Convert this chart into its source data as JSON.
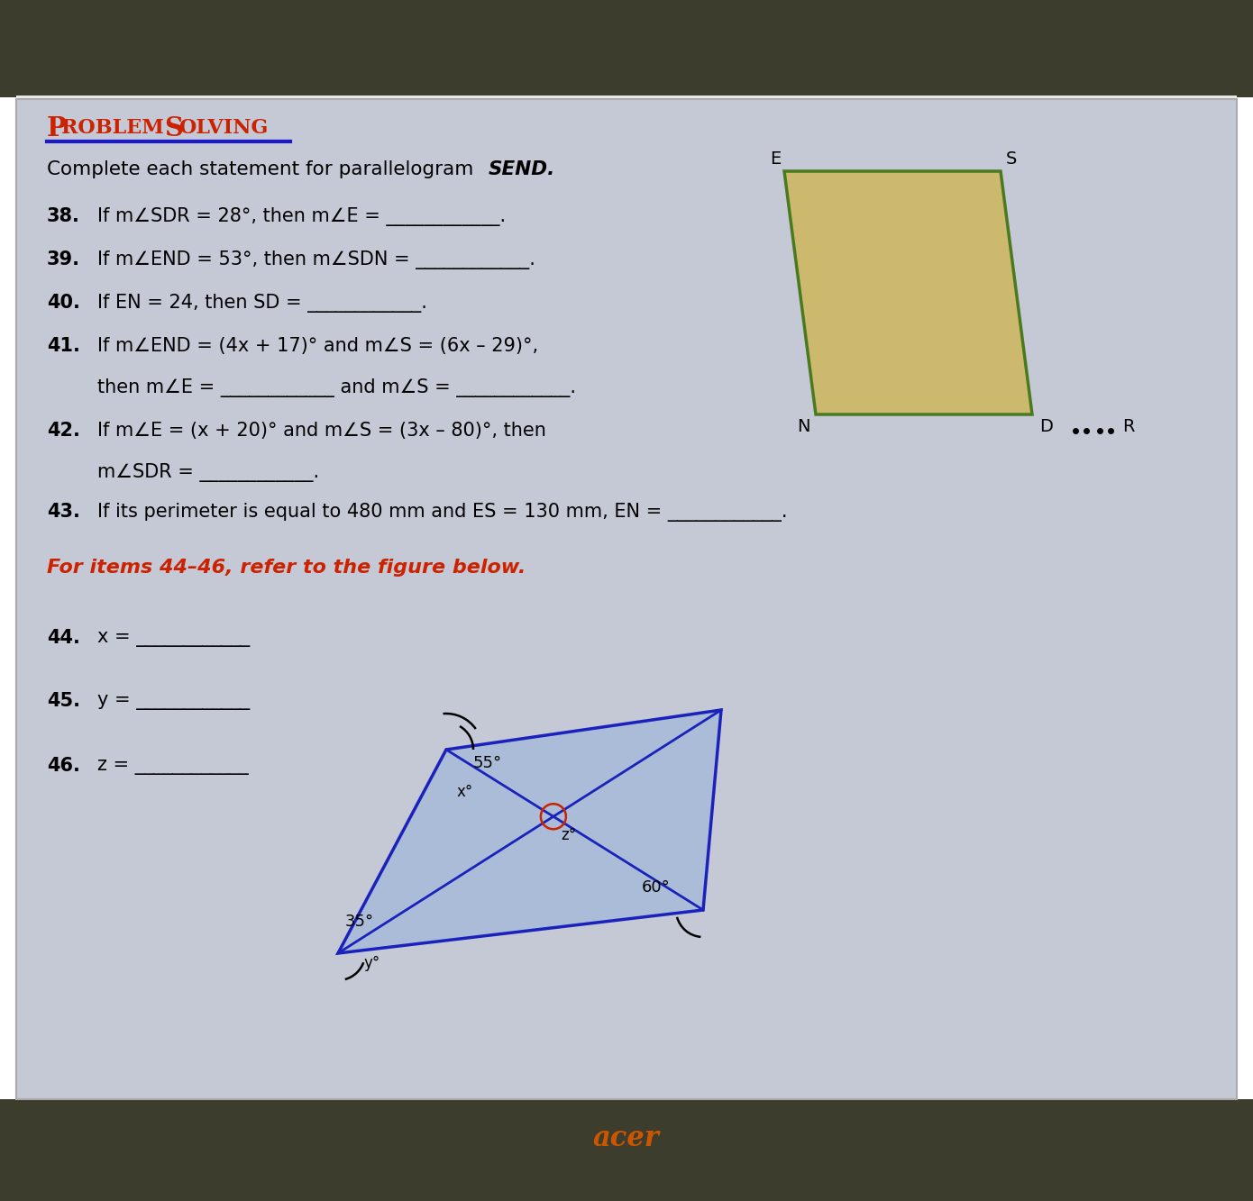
{
  "bg_top_color": "#3d3d2e",
  "bg_main_color": "#c5c9d5",
  "title_color": "#cc2200",
  "underline_color": "#1a1acc",
  "text_color": "#111111",
  "send_fill": "#cdb96e",
  "send_edge": "#4a7a20",
  "rhombus_fill": "#aabcd8",
  "rhombus_edge": "#1a22bb",
  "rhombus_arc_color": "#cc2200",
  "acer_color": "#cc5500",
  "items": [
    {
      "num": "38.",
      "text": "If m∠SDR = 28°, then m∠E = ____________."
    },
    {
      "num": "39.",
      "text": "If m∠END = 53°, then m∠SDN = ____________."
    },
    {
      "num": "40.",
      "text": "If EN = 24, then SD = ____________."
    },
    {
      "num": "41.",
      "text": "If m∠END = (4x + 17)° and m∠S = (6x – 29)°,"
    },
    {
      "num": "",
      "text": "then m∠E = ____________ and m∠S = ____________."
    },
    {
      "num": "42.",
      "text": "If m∠E = (x + 20)° and m∠S = (3x – 80)°, then"
    },
    {
      "num": "",
      "text": "m∠SDR = ____________."
    },
    {
      "num": "43.",
      "text": "If its perimeter is equal to 480 mm and ES = 130 mm, EN = ____________."
    }
  ],
  "ref_header": "For items 44–46, refer to the figure below.",
  "items_44_46": [
    {
      "num": "44.",
      "text": "x = ____________"
    },
    {
      "num": "45.",
      "text": "y = ____________"
    },
    {
      "num": "46.",
      "text": "z = ____________"
    }
  ]
}
